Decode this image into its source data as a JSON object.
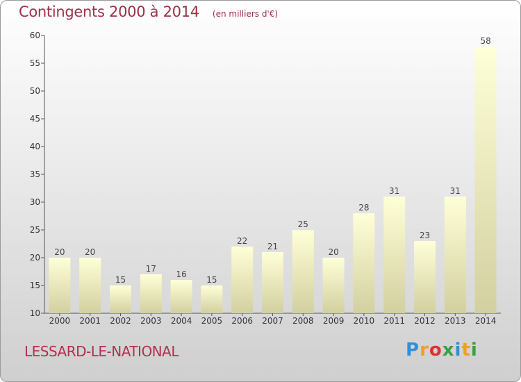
{
  "title": "Contingents 2000 à 2014",
  "subtitle": "(en milliers d'€)",
  "city": "LESSARD-LE-NATIONAL",
  "logo": {
    "letters": [
      "P",
      "r",
      "o",
      "x",
      "i",
      "t",
      "i"
    ],
    "colors": [
      "#2f8fd8",
      "#f0a020",
      "#e03030",
      "#3aa040",
      "#2f8fd8",
      "#f0a020",
      "#3aa040"
    ]
  },
  "chart_data": {
    "type": "bar",
    "categories": [
      "2000",
      "2001",
      "2002",
      "2003",
      "2004",
      "2005",
      "2006",
      "2007",
      "2008",
      "2009",
      "2010",
      "2011",
      "2012",
      "2013",
      "2014"
    ],
    "values": [
      20,
      20,
      15,
      17,
      16,
      15,
      22,
      21,
      25,
      20,
      28,
      31,
      23,
      31,
      58
    ],
    "ylim": [
      10,
      60
    ],
    "yticks": [
      10,
      15,
      20,
      25,
      30,
      35,
      40,
      45,
      50,
      55,
      60
    ],
    "grid": false,
    "colors": {
      "bar_top": "#ffffd8",
      "bar_bottom": "#d2d0a0",
      "axis": "#555555",
      "title": "#a0304a"
    }
  }
}
